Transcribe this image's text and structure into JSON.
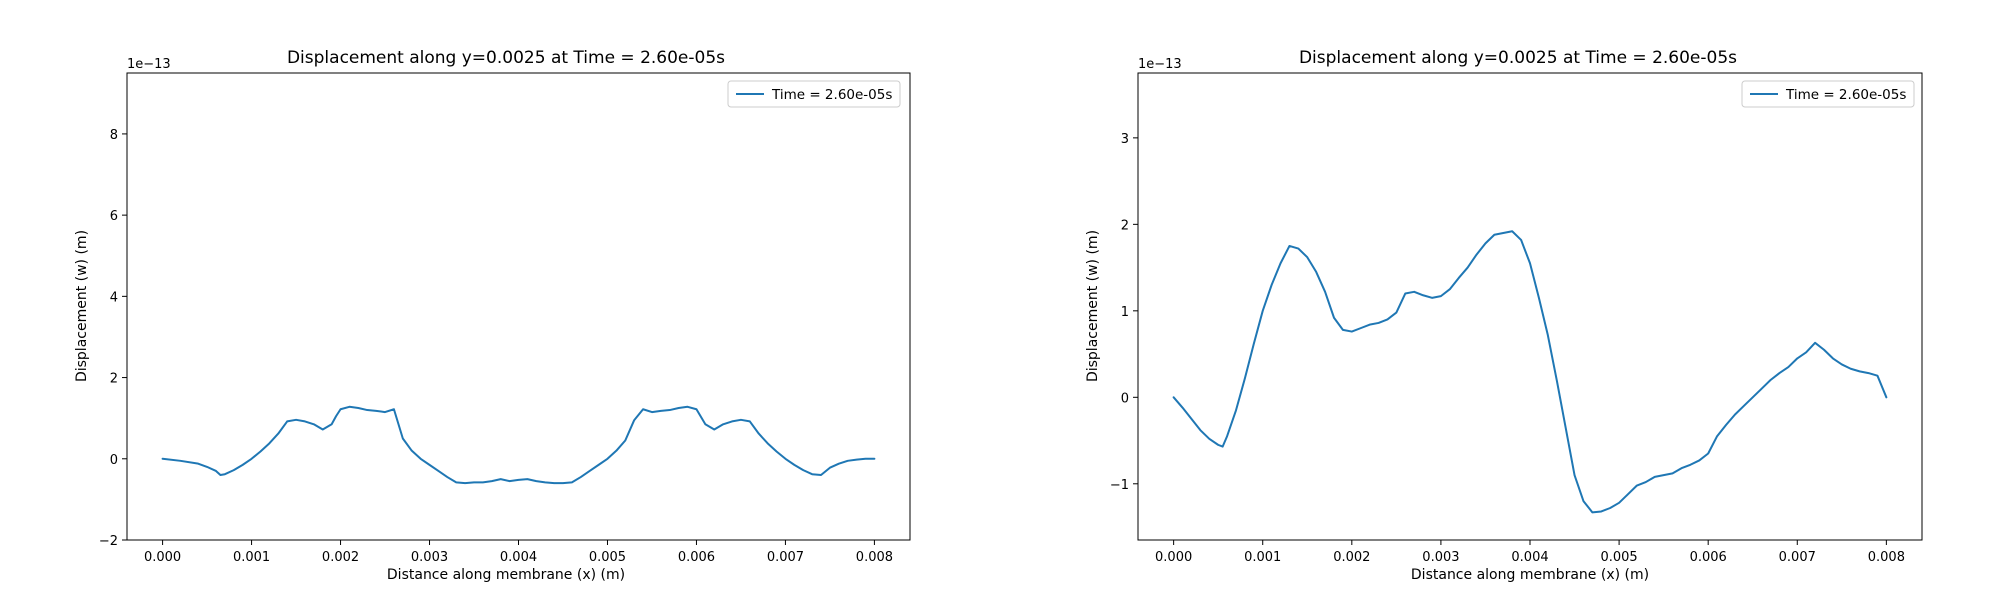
{
  "chart_data": [
    {
      "type": "line",
      "title": "Displacement along y=0.0025 at Time = 2.60e-05s",
      "xlabel": "Distance along membrane (x) (m)",
      "ylabel": "Displacement (w) (m)",
      "offset_text": "1e−13",
      "xlim": [
        -0.0004,
        0.0084
      ],
      "ylim": [
        -2.0,
        9.5
      ],
      "xticks": [
        0.0,
        0.001,
        0.002,
        0.003,
        0.004,
        0.005,
        0.006,
        0.007,
        0.008
      ],
      "xtick_labels": [
        "0.000",
        "0.001",
        "0.002",
        "0.003",
        "0.004",
        "0.005",
        "0.006",
        "0.007",
        "0.008"
      ],
      "yticks": [
        -2,
        0,
        2,
        4,
        6,
        8
      ],
      "ytick_labels": [
        "−2",
        "0",
        "2",
        "4",
        "6",
        "8"
      ],
      "grid": false,
      "legend_position": "top-right",
      "color": "#1f77b4",
      "series": [
        {
          "name": "Time = 2.60e-05s",
          "x": [
            0,
            0.0002,
            0.0004,
            0.0005,
            0.0006,
            0.00065,
            0.0007,
            0.0008,
            0.0009,
            0.001,
            0.0011,
            0.0012,
            0.0013,
            0.0014,
            0.0015,
            0.0016,
            0.0017,
            0.0018,
            0.0019,
            0.00195,
            0.002,
            0.0021,
            0.0022,
            0.0023,
            0.0024,
            0.0025,
            0.0026,
            0.0027,
            0.0028,
            0.0029,
            0.003,
            0.0031,
            0.0032,
            0.0033,
            0.0034,
            0.0035,
            0.0036,
            0.0037,
            0.0038,
            0.0039,
            0.004,
            0.0041,
            0.0042,
            0.0043,
            0.0044,
            0.0045,
            0.0046,
            0.0047,
            0.0048,
            0.0049,
            0.005,
            0.0051,
            0.0052,
            0.0053,
            0.0054,
            0.0055,
            0.0056,
            0.0057,
            0.0058,
            0.0059,
            0.006,
            0.0061,
            0.0062,
            0.0063,
            0.0064,
            0.0065,
            0.0066,
            0.0067,
            0.0068,
            0.0069,
            0.007,
            0.0071,
            0.0072,
            0.0073,
            0.0074,
            0.0075,
            0.0076,
            0.0077,
            0.0078,
            0.0079,
            0.008
          ],
          "y": [
            0.0,
            -0.05,
            -0.12,
            -0.2,
            -0.3,
            -0.4,
            -0.38,
            -0.28,
            -0.15,
            0.0,
            0.18,
            0.38,
            0.62,
            0.92,
            0.96,
            0.92,
            0.85,
            0.72,
            0.85,
            1.05,
            1.22,
            1.28,
            1.25,
            1.2,
            1.18,
            1.15,
            1.22,
            0.5,
            0.2,
            0.0,
            -0.15,
            -0.3,
            -0.45,
            -0.58,
            -0.6,
            -0.58,
            -0.58,
            -0.55,
            -0.5,
            -0.55,
            -0.52,
            -0.5,
            -0.55,
            -0.58,
            -0.6,
            -0.6,
            -0.58,
            -0.45,
            -0.3,
            -0.15,
            0.0,
            0.2,
            0.45,
            0.95,
            1.22,
            1.15,
            1.18,
            1.2,
            1.25,
            1.28,
            1.22,
            0.85,
            0.72,
            0.85,
            0.92,
            0.96,
            0.92,
            0.62,
            0.38,
            0.18,
            0.0,
            -0.15,
            -0.28,
            -0.38,
            -0.4,
            -0.22,
            -0.12,
            -0.05,
            -0.02,
            0.0,
            0.0
          ]
        }
      ]
    },
    {
      "type": "line",
      "title": "Displacement along y=0.0025 at Time = 2.60e-05s",
      "xlabel": "Distance along membrane (x) (m)",
      "ylabel": "Displacement (w) (m)",
      "offset_text": "1e−13",
      "xlim": [
        -0.0004,
        0.0084
      ],
      "ylim": [
        -1.65,
        3.75
      ],
      "xticks": [
        0.0,
        0.001,
        0.002,
        0.003,
        0.004,
        0.005,
        0.006,
        0.007,
        0.008
      ],
      "xtick_labels": [
        "0.000",
        "0.001",
        "0.002",
        "0.003",
        "0.004",
        "0.005",
        "0.006",
        "0.007",
        "0.008"
      ],
      "yticks": [
        -1,
        0,
        1,
        2,
        3
      ],
      "ytick_labels": [
        "−1",
        "0",
        "1",
        "2",
        "3"
      ],
      "grid": false,
      "legend_position": "top-right",
      "color": "#1f77b4",
      "series": [
        {
          "name": "Time = 2.60e-05s",
          "x": [
            0,
            0.0001,
            0.0002,
            0.0003,
            0.0004,
            0.0005,
            0.00055,
            0.0006,
            0.0007,
            0.0008,
            0.0009,
            0.001,
            0.0011,
            0.0012,
            0.0013,
            0.0014,
            0.0015,
            0.0016,
            0.0017,
            0.0018,
            0.0019,
            0.002,
            0.0021,
            0.0022,
            0.0023,
            0.0024,
            0.0025,
            0.0026,
            0.0027,
            0.0028,
            0.0029,
            0.003,
            0.0031,
            0.0032,
            0.0033,
            0.0034,
            0.0035,
            0.0036,
            0.0037,
            0.0038,
            0.0039,
            0.004,
            0.0041,
            0.0042,
            0.0043,
            0.0044,
            0.0045,
            0.0046,
            0.0047,
            0.0048,
            0.0049,
            0.005,
            0.0051,
            0.0052,
            0.0053,
            0.0054,
            0.0055,
            0.0056,
            0.0057,
            0.0058,
            0.0059,
            0.006,
            0.0061,
            0.0062,
            0.0063,
            0.0064,
            0.0065,
            0.0066,
            0.0067,
            0.0068,
            0.0069,
            0.007,
            0.0071,
            0.0072,
            0.0073,
            0.0074,
            0.0075,
            0.0076,
            0.0077,
            0.0078,
            0.0079,
            0.008
          ],
          "y": [
            0.0,
            -0.12,
            -0.25,
            -0.38,
            -0.48,
            -0.55,
            -0.57,
            -0.45,
            -0.15,
            0.22,
            0.62,
            1.0,
            1.3,
            1.55,
            1.75,
            1.72,
            1.62,
            1.45,
            1.22,
            0.92,
            0.78,
            0.76,
            0.8,
            0.84,
            0.86,
            0.9,
            0.98,
            1.2,
            1.22,
            1.18,
            1.15,
            1.17,
            1.25,
            1.38,
            1.5,
            1.65,
            1.78,
            1.88,
            1.9,
            1.92,
            1.82,
            1.55,
            1.15,
            0.72,
            0.2,
            -0.35,
            -0.9,
            -1.2,
            -1.33,
            -1.32,
            -1.28,
            -1.22,
            -1.12,
            -1.02,
            -0.98,
            -0.92,
            -0.9,
            -0.88,
            -0.82,
            -0.78,
            -0.73,
            -0.65,
            -0.45,
            -0.32,
            -0.2,
            -0.1,
            0.0,
            0.1,
            0.2,
            0.28,
            0.35,
            0.45,
            0.52,
            0.63,
            0.55,
            0.45,
            0.38,
            0.33,
            0.3,
            0.28,
            0.25,
            0.0
          ]
        }
      ]
    }
  ]
}
